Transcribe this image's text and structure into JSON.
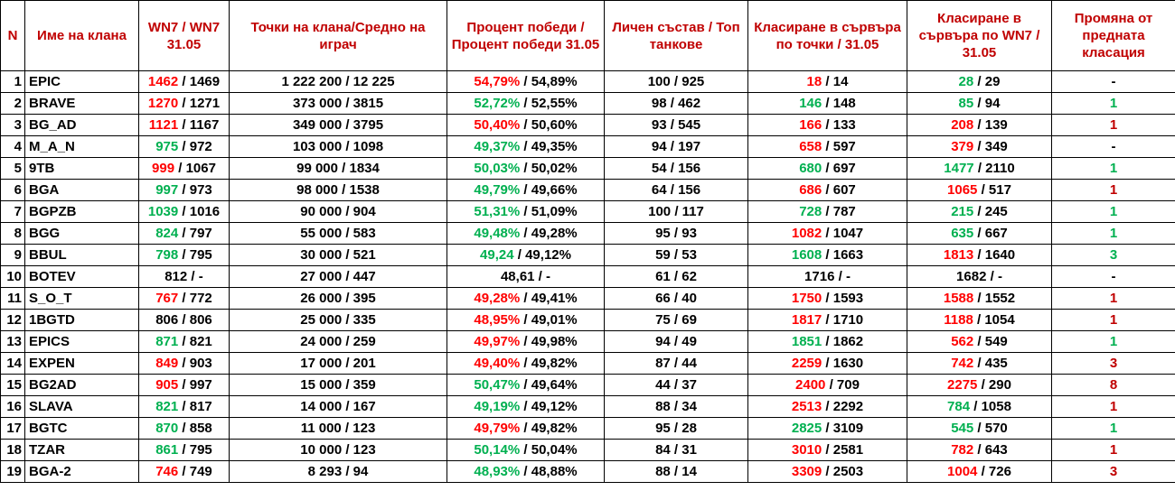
{
  "headers": [
    "N",
    "Име на клана",
    "WN7 / WN7 31.05",
    "Точки на клана/Средно на играч",
    "Процент победи / Процент победи 31.05",
    "Личен състав / Топ танкове",
    "Класиране в сървъра по точки / 31.05",
    "Класиране в сървъра по WN7 / 31.05",
    "Промяна от предната класация"
  ],
  "rows": [
    {
      "n": "1",
      "name": "EPIC",
      "wn7": {
        "a": "1462",
        "ac": "red",
        "b": "1469"
      },
      "points": "1 222 200 / 12 225",
      "win": {
        "a": "54,79%",
        "ac": "red",
        "b": "54,89%"
      },
      "staff": "100 / 925",
      "rank_pts": {
        "a": "18",
        "ac": "red",
        "b": "14"
      },
      "rank_wn7": {
        "a": "28",
        "ac": "green",
        "b": "29"
      },
      "change": {
        "v": "-",
        "c": "black"
      }
    },
    {
      "n": "2",
      "name": "BRAVE",
      "wn7": {
        "a": "1270",
        "ac": "red",
        "b": "1271"
      },
      "points": "373 000 / 3815",
      "win": {
        "a": "52,72%",
        "ac": "green",
        "b": "52,55%"
      },
      "staff": "98 / 462",
      "rank_pts": {
        "a": "146",
        "ac": "green",
        "b": "148"
      },
      "rank_wn7": {
        "a": "85",
        "ac": "green",
        "b": "94"
      },
      "change": {
        "v": "1",
        "c": "green"
      }
    },
    {
      "n": "3",
      "name": "BG_AD",
      "wn7": {
        "a": "1121",
        "ac": "red",
        "b": "1167"
      },
      "points": "349 000 / 3795",
      "win": {
        "a": "50,40%",
        "ac": "red",
        "b": "50,60%"
      },
      "staff": "93 / 545",
      "rank_pts": {
        "a": "166",
        "ac": "red",
        "b": "133"
      },
      "rank_wn7": {
        "a": "208",
        "ac": "red",
        "b": "139"
      },
      "change": {
        "v": "1",
        "c": "red"
      }
    },
    {
      "n": "4",
      "name": "M_A_N",
      "wn7": {
        "a": "975",
        "ac": "green",
        "b": "972"
      },
      "points": "103 000 / 1098",
      "win": {
        "a": "49,37%",
        "ac": "green",
        "b": "49,35%"
      },
      "staff": "94 / 197",
      "rank_pts": {
        "a": "658",
        "ac": "red",
        "b": "597"
      },
      "rank_wn7": {
        "a": "379",
        "ac": "red",
        "b": "349"
      },
      "change": {
        "v": "-",
        "c": "black"
      }
    },
    {
      "n": "5",
      "name": "9TB",
      "wn7": {
        "a": "999",
        "ac": "red",
        "b": "1067"
      },
      "points": "99 000 / 1834",
      "win": {
        "a": "50,03%",
        "ac": "green",
        "b": "50,02%"
      },
      "staff": "54 / 156",
      "rank_pts": {
        "a": "680",
        "ac": "green",
        "b": "697"
      },
      "rank_wn7": {
        "a": "1477",
        "ac": "green",
        "b": "2110"
      },
      "change": {
        "v": "1",
        "c": "green"
      }
    },
    {
      "n": "6",
      "name": "BGA",
      "wn7": {
        "a": "997",
        "ac": "green",
        "b": "973"
      },
      "points": "98 000 / 1538",
      "win": {
        "a": "49,79%",
        "ac": "green",
        "b": "49,66%"
      },
      "staff": "64 / 156",
      "rank_pts": {
        "a": "686",
        "ac": "red",
        "b": "607"
      },
      "rank_wn7": {
        "a": "1065",
        "ac": "red",
        "b": "517"
      },
      "change": {
        "v": "1",
        "c": "red"
      }
    },
    {
      "n": "7",
      "name": "BGPZB",
      "wn7": {
        "a": "1039",
        "ac": "green",
        "b": "1016"
      },
      "points": "90 000 / 904",
      "win": {
        "a": "51,31%",
        "ac": "green",
        "b": "51,09%"
      },
      "staff": "100 / 117",
      "rank_pts": {
        "a": "728",
        "ac": "green",
        "b": "787"
      },
      "rank_wn7": {
        "a": "215",
        "ac": "green",
        "b": "245"
      },
      "change": {
        "v": "1",
        "c": "green"
      }
    },
    {
      "n": "8",
      "name": "BGG",
      "wn7": {
        "a": "824",
        "ac": "green",
        "b": "797"
      },
      "points": "55 000 / 583",
      "win": {
        "a": "49,48%",
        "ac": "green",
        "b": "49,28%"
      },
      "staff": "95 / 93",
      "rank_pts": {
        "a": "1082",
        "ac": "red",
        "b": "1047"
      },
      "rank_wn7": {
        "a": "635",
        "ac": "green",
        "b": "667"
      },
      "change": {
        "v": "1",
        "c": "green"
      }
    },
    {
      "n": "9",
      "name": "BBUL",
      "wn7": {
        "a": "798",
        "ac": "green",
        "b": "795"
      },
      "points": "30 000 / 521",
      "win": {
        "a": "49,24",
        "ac": "green",
        "b": "49,12%"
      },
      "staff": "59 / 53",
      "rank_pts": {
        "a": "1608",
        "ac": "green",
        "b": "1663"
      },
      "rank_wn7": {
        "a": "1813",
        "ac": "red",
        "b": "1640"
      },
      "change": {
        "v": "3",
        "c": "green"
      }
    },
    {
      "n": "10",
      "name": "BOTEV",
      "wn7": {
        "a": "812",
        "ac": "black",
        "b": "-"
      },
      "points": "27 000 / 447",
      "win": {
        "a": "48,61",
        "ac": "black",
        "b": "-"
      },
      "staff": "61 / 62",
      "rank_pts": {
        "a": "1716",
        "ac": "black",
        "b": "-"
      },
      "rank_wn7": {
        "a": "1682",
        "ac": "black",
        "b": "-"
      },
      "change": {
        "v": "-",
        "c": "black"
      }
    },
    {
      "n": "11",
      "name": "S_O_T",
      "wn7": {
        "a": "767",
        "ac": "red",
        "b": "772"
      },
      "points": "26 000 / 395",
      "win": {
        "a": "49,28%",
        "ac": "red",
        "b": "49,41%"
      },
      "staff": "66 / 40",
      "rank_pts": {
        "a": "1750",
        "ac": "red",
        "b": "1593"
      },
      "rank_wn7": {
        "a": "1588",
        "ac": "red",
        "b": "1552"
      },
      "change": {
        "v": "1",
        "c": "red"
      }
    },
    {
      "n": "12",
      "name": "1BGTD",
      "wn7": {
        "a": "806",
        "ac": "black",
        "b": "806"
      },
      "points": "25 000 / 335",
      "win": {
        "a": "48,95%",
        "ac": "red",
        "b": "49,01%"
      },
      "staff": "75 / 69",
      "rank_pts": {
        "a": "1817",
        "ac": "red",
        "b": "1710"
      },
      "rank_wn7": {
        "a": "1188",
        "ac": "red",
        "b": "1054"
      },
      "change": {
        "v": "1",
        "c": "red"
      }
    },
    {
      "n": "13",
      "name": "EPICS",
      "wn7": {
        "a": "871",
        "ac": "green",
        "b": "821"
      },
      "points": "24 000 / 259",
      "win": {
        "a": "49,97%",
        "ac": "red",
        "b": "49,98%"
      },
      "staff": "94 / 49",
      "rank_pts": {
        "a": "1851",
        "ac": "green",
        "b": "1862"
      },
      "rank_wn7": {
        "a": "562",
        "ac": "red",
        "b": "549"
      },
      "change": {
        "v": "1",
        "c": "green"
      }
    },
    {
      "n": "14",
      "name": "EXPEN",
      "wn7": {
        "a": "849",
        "ac": "red",
        "b": "903"
      },
      "points": "17 000 / 201",
      "win": {
        "a": "49,40%",
        "ac": "red",
        "b": "49,82%"
      },
      "staff": "87 / 44",
      "rank_pts": {
        "a": "2259",
        "ac": "red",
        "b": "1630"
      },
      "rank_wn7": {
        "a": "742",
        "ac": "red",
        "b": "435"
      },
      "change": {
        "v": "3",
        "c": "red"
      }
    },
    {
      "n": "15",
      "name": "BG2AD",
      "wn7": {
        "a": "905",
        "ac": "red",
        "b": "997"
      },
      "points": "15 000 / 359",
      "win": {
        "a": "50,47%",
        "ac": "green",
        "b": "49,64%"
      },
      "staff": "44 / 37",
      "rank_pts": {
        "a": "2400",
        "ac": "red",
        "b": "709"
      },
      "rank_wn7": {
        "a": "2275",
        "ac": "red",
        "b": "290"
      },
      "change": {
        "v": "8",
        "c": "red"
      }
    },
    {
      "n": "16",
      "name": "SLAVA",
      "wn7": {
        "a": "821",
        "ac": "green",
        "b": "817"
      },
      "points": "14 000 / 167",
      "win": {
        "a": "49,19%",
        "ac": "green",
        "b": "49,12%"
      },
      "staff": "88 / 34",
      "rank_pts": {
        "a": "2513",
        "ac": "red",
        "b": "2292"
      },
      "rank_wn7": {
        "a": "784",
        "ac": "green",
        "b": "1058"
      },
      "change": {
        "v": "1",
        "c": "red"
      }
    },
    {
      "n": "17",
      "name": "BGTC",
      "wn7": {
        "a": "870",
        "ac": "green",
        "b": "858"
      },
      "points": "11 000 / 123",
      "win": {
        "a": "49,79%",
        "ac": "red",
        "b": "49,82%"
      },
      "staff": "95 / 28",
      "rank_pts": {
        "a": "2825",
        "ac": "green",
        "b": "3109"
      },
      "rank_wn7": {
        "a": "545",
        "ac": "green",
        "b": "570"
      },
      "change": {
        "v": "1",
        "c": "green"
      }
    },
    {
      "n": "18",
      "name": "TZAR",
      "wn7": {
        "a": "861",
        "ac": "green",
        "b": "795"
      },
      "points": "10 000 / 123",
      "win": {
        "a": "50,14%",
        "ac": "green",
        "b": "50,04%"
      },
      "staff": "84 / 31",
      "rank_pts": {
        "a": "3010",
        "ac": "red",
        "b": "2581"
      },
      "rank_wn7": {
        "a": "782",
        "ac": "red",
        "b": "643"
      },
      "change": {
        "v": "1",
        "c": "red"
      }
    },
    {
      "n": "19",
      "name": "BGA-2",
      "wn7": {
        "a": "746",
        "ac": "red",
        "b": "749"
      },
      "points": "8 293 / 94",
      "win": {
        "a": "48,93%",
        "ac": "green",
        "b": "48,88%"
      },
      "staff": "88 / 14",
      "rank_pts": {
        "a": "3309",
        "ac": "red",
        "b": "2503"
      },
      "rank_wn7": {
        "a": "1004",
        "ac": "red",
        "b": "726"
      },
      "change": {
        "v": "3",
        "c": "red"
      }
    }
  ],
  "colors": {
    "header": "#c00000",
    "red": "#ff0000",
    "green": "#00b050",
    "black": "#000000",
    "change_red": "#c00000"
  }
}
